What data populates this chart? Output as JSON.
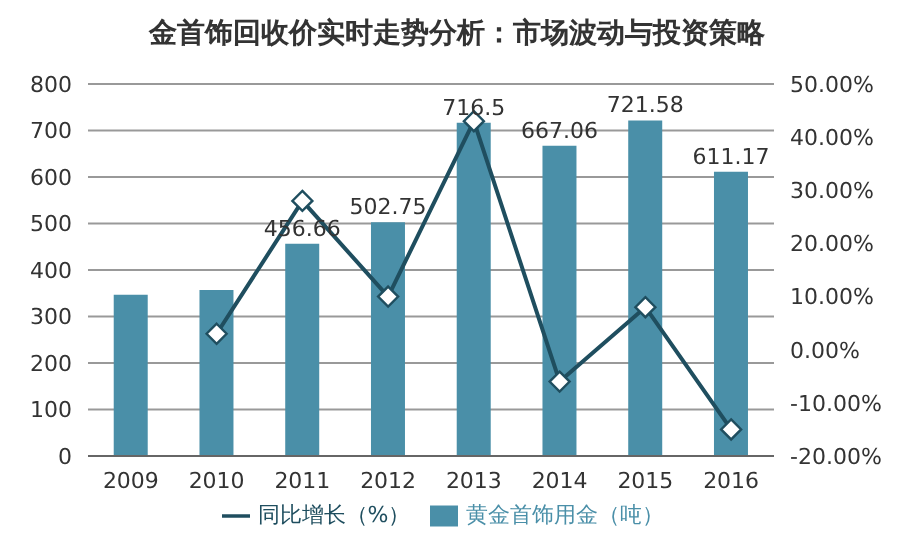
{
  "chart_data": {
    "type": "bar",
    "title": "金首饰回收价实时走势分析：市场波动与投资策略",
    "categories": [
      "2009",
      "2010",
      "2011",
      "2012",
      "2013",
      "2014",
      "2015",
      "2016"
    ],
    "series": [
      {
        "name": "黄金首饰用金（吨）",
        "color": "#4a8fa8",
        "values": [
          347,
          357,
          456.66,
          502.75,
          716.5,
          667.06,
          721.58,
          611.17
        ],
        "value_labels": [
          null,
          null,
          "456.66",
          "502.75",
          "716.5",
          "667.06",
          "721.58",
          "611.17"
        ]
      },
      {
        "name": "同比增长（%）",
        "type": "line",
        "axis": "y2",
        "color": "#1f4e5f",
        "marker": "diamond",
        "values": [
          null,
          3,
          28,
          10,
          43,
          -6,
          8,
          -15
        ]
      }
    ],
    "ylim": [
      0,
      800
    ],
    "yticks": [
      0,
      100,
      200,
      300,
      400,
      500,
      600,
      700,
      800
    ],
    "y2lim": [
      -20,
      50
    ],
    "y2ticks": [
      {
        "value": -20,
        "label": "-20.00%"
      },
      {
        "value": -10,
        "label": "-10.00%"
      },
      {
        "value": 0,
        "label": "0.00%"
      },
      {
        "value": 10,
        "label": "10.00%"
      },
      {
        "value": 20,
        "label": "20.00%"
      },
      {
        "value": 30,
        "label": "30.00%"
      },
      {
        "value": 40,
        "label": "40.00%"
      },
      {
        "value": 50,
        "label": "50.00%"
      }
    ],
    "grid": "y",
    "legend": "bottom"
  }
}
